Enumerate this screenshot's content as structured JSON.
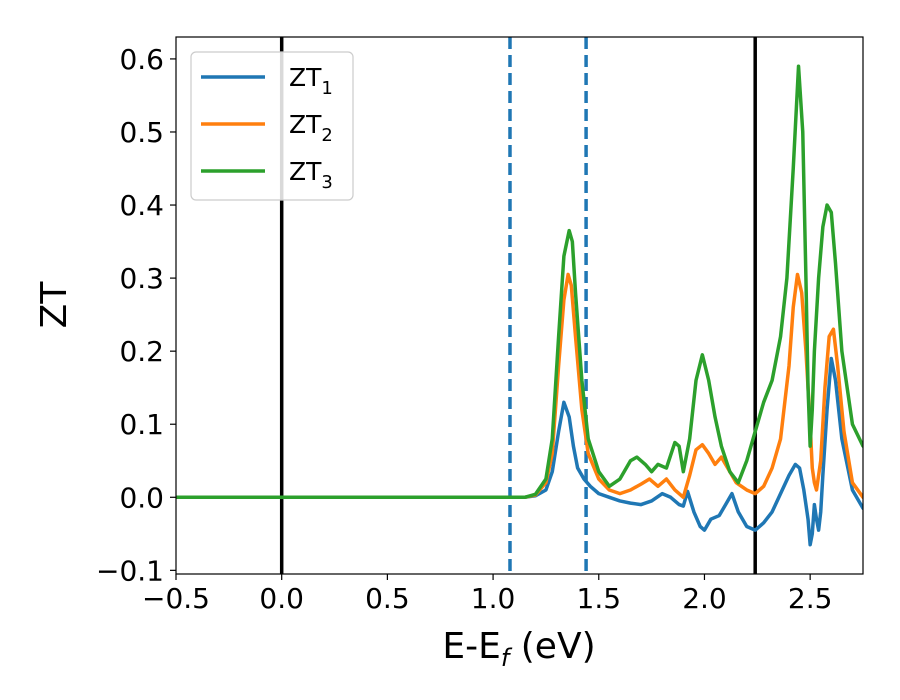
{
  "chart_data": {
    "type": "line",
    "xlabel": "E-E",
    "xlabel_sub": "f",
    "xlabel_unit": " (eV)",
    "ylabel": "ZT",
    "xlim": [
      -0.5,
      2.75
    ],
    "ylim": [
      -0.105,
      0.63
    ],
    "xticks": [
      -0.5,
      0.0,
      0.5,
      1.0,
      1.5,
      2.0,
      2.5
    ],
    "xtick_labels": [
      "−0.5",
      "0.0",
      "0.5",
      "1.0",
      "1.5",
      "2.0",
      "2.5"
    ],
    "yticks": [
      -0.1,
      0.0,
      0.1,
      0.2,
      0.3,
      0.4,
      0.5,
      0.6
    ],
    "ytick_labels": [
      "−0.1",
      "0.0",
      "0.1",
      "0.2",
      "0.3",
      "0.4",
      "0.5",
      "0.6"
    ],
    "grid": false,
    "legend_position": "top-left",
    "vlines": [
      {
        "x": 0.0,
        "style": "solid",
        "color": "#000000"
      },
      {
        "x": 2.24,
        "style": "solid",
        "color": "#000000"
      },
      {
        "x": 1.08,
        "style": "dashed",
        "color": "#1f77b4"
      },
      {
        "x": 1.44,
        "style": "dashed",
        "color": "#1f77b4"
      }
    ],
    "series": [
      {
        "name": "ZT",
        "sub": "1",
        "color": "#1f77b4",
        "x": [
          -0.5,
          1.0,
          1.1,
          1.15,
          1.2,
          1.25,
          1.28,
          1.31,
          1.335,
          1.36,
          1.38,
          1.4,
          1.43,
          1.46,
          1.5,
          1.55,
          1.6,
          1.65,
          1.7,
          1.75,
          1.8,
          1.84,
          1.88,
          1.9,
          1.92,
          1.95,
          1.98,
          2.0,
          2.03,
          2.07,
          2.1,
          2.13,
          2.16,
          2.2,
          2.24,
          2.28,
          2.32,
          2.36,
          2.4,
          2.43,
          2.45,
          2.47,
          2.49,
          2.5,
          2.51,
          2.52,
          2.53,
          2.54,
          2.55,
          2.56,
          2.58,
          2.6,
          2.62,
          2.65,
          2.7,
          2.75
        ],
        "y": [
          0.0,
          0.0,
          0.0,
          0.0,
          0.002,
          0.01,
          0.035,
          0.09,
          0.13,
          0.11,
          0.07,
          0.04,
          0.025,
          0.015,
          0.005,
          0.0,
          -0.005,
          -0.008,
          -0.01,
          -0.005,
          0.005,
          0.0,
          -0.01,
          -0.012,
          0.008,
          -0.02,
          -0.04,
          -0.045,
          -0.03,
          -0.025,
          -0.01,
          0.005,
          -0.02,
          -0.04,
          -0.045,
          -0.035,
          -0.02,
          0.005,
          0.03,
          0.045,
          0.04,
          0.01,
          -0.03,
          -0.065,
          -0.05,
          -0.01,
          -0.03,
          -0.045,
          -0.02,
          0.03,
          0.12,
          0.19,
          0.16,
          0.08,
          0.01,
          -0.015
        ]
      },
      {
        "name": "ZT",
        "sub": "2",
        "color": "#ff7f0e",
        "x": [
          -0.5,
          1.0,
          1.1,
          1.15,
          1.2,
          1.25,
          1.28,
          1.31,
          1.335,
          1.355,
          1.37,
          1.39,
          1.42,
          1.45,
          1.5,
          1.55,
          1.6,
          1.65,
          1.7,
          1.74,
          1.78,
          1.82,
          1.86,
          1.9,
          1.93,
          1.96,
          1.99,
          2.02,
          2.05,
          2.08,
          2.11,
          2.15,
          2.2,
          2.24,
          2.28,
          2.32,
          2.36,
          2.4,
          2.42,
          2.44,
          2.46,
          2.48,
          2.5,
          2.51,
          2.52,
          2.53,
          2.55,
          2.57,
          2.59,
          2.61,
          2.63,
          2.66,
          2.7,
          2.75
        ],
        "y": [
          0.0,
          0.0,
          0.0,
          0.0,
          0.003,
          0.02,
          0.06,
          0.18,
          0.27,
          0.305,
          0.29,
          0.22,
          0.12,
          0.06,
          0.025,
          0.01,
          0.005,
          0.01,
          0.018,
          0.025,
          0.015,
          0.025,
          0.01,
          0.0,
          0.03,
          0.065,
          0.072,
          0.06,
          0.045,
          0.055,
          0.04,
          0.02,
          0.01,
          0.005,
          0.015,
          0.04,
          0.08,
          0.18,
          0.26,
          0.305,
          0.28,
          0.2,
          0.1,
          0.04,
          0.02,
          0.01,
          0.05,
          0.15,
          0.22,
          0.23,
          0.18,
          0.09,
          0.02,
          0.0
        ]
      },
      {
        "name": "ZT",
        "sub": "3",
        "color": "#2ca02c",
        "x": [
          -0.5,
          1.0,
          1.1,
          1.15,
          1.2,
          1.25,
          1.28,
          1.31,
          1.335,
          1.36,
          1.375,
          1.39,
          1.42,
          1.45,
          1.5,
          1.55,
          1.6,
          1.65,
          1.68,
          1.72,
          1.75,
          1.78,
          1.82,
          1.86,
          1.88,
          1.9,
          1.93,
          1.96,
          1.99,
          2.02,
          2.05,
          2.08,
          2.12,
          2.16,
          2.2,
          2.24,
          2.28,
          2.32,
          2.36,
          2.39,
          2.42,
          2.445,
          2.465,
          2.48,
          2.49,
          2.5,
          2.51,
          2.52,
          2.54,
          2.56,
          2.58,
          2.6,
          2.62,
          2.65,
          2.7,
          2.75
        ],
        "y": [
          0.0,
          0.0,
          0.0,
          0.0,
          0.004,
          0.025,
          0.08,
          0.22,
          0.33,
          0.365,
          0.35,
          0.28,
          0.16,
          0.08,
          0.035,
          0.015,
          0.025,
          0.05,
          0.055,
          0.045,
          0.035,
          0.045,
          0.04,
          0.075,
          0.07,
          0.035,
          0.08,
          0.16,
          0.195,
          0.16,
          0.11,
          0.07,
          0.035,
          0.02,
          0.05,
          0.09,
          0.13,
          0.16,
          0.22,
          0.3,
          0.45,
          0.59,
          0.5,
          0.3,
          0.15,
          0.07,
          0.12,
          0.2,
          0.3,
          0.37,
          0.4,
          0.39,
          0.32,
          0.2,
          0.1,
          0.07
        ]
      }
    ]
  }
}
